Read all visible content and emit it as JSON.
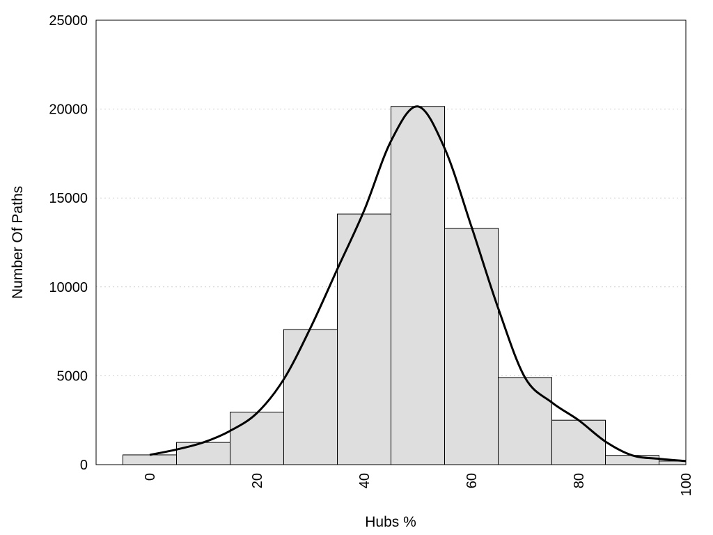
{
  "chart_data": {
    "type": "bar",
    "xlabel": "Hubs %",
    "ylabel": "Number Of Paths",
    "xlim": [
      -10,
      100
    ],
    "ylim": [
      0,
      25000
    ],
    "x_ticks": [
      0,
      20,
      40,
      60,
      80,
      100
    ],
    "y_ticks": [
      0,
      5000,
      10000,
      15000,
      20000,
      25000
    ],
    "grid": "horizontal-dotted",
    "bin_width": 10,
    "bins": [
      {
        "center": 0,
        "value": 550
      },
      {
        "center": 10,
        "value": 1250
      },
      {
        "center": 20,
        "value": 2950
      },
      {
        "center": 30,
        "value": 7600
      },
      {
        "center": 40,
        "value": 14100
      },
      {
        "center": 50,
        "value": 20150
      },
      {
        "center": 60,
        "value": 13300
      },
      {
        "center": 70,
        "value": 4900
      },
      {
        "center": 80,
        "value": 2500
      },
      {
        "center": 90,
        "value": 520
      },
      {
        "center": 100,
        "value": 200
      }
    ],
    "density_curve": [
      [
        0,
        550
      ],
      [
        5,
        850
      ],
      [
        10,
        1250
      ],
      [
        15,
        1900
      ],
      [
        20,
        2900
      ],
      [
        25,
        4800
      ],
      [
        30,
        7700
      ],
      [
        35,
        11000
      ],
      [
        40,
        14300
      ],
      [
        45,
        18200
      ],
      [
        50,
        20150
      ],
      [
        55,
        17800
      ],
      [
        60,
        13400
      ],
      [
        65,
        8800
      ],
      [
        70,
        4900
      ],
      [
        75,
        3500
      ],
      [
        80,
        2500
      ],
      [
        85,
        1300
      ],
      [
        90,
        520
      ],
      [
        95,
        330
      ],
      [
        100,
        200
      ]
    ],
    "bar_color": "#dedede",
    "line_color": "#000000"
  }
}
